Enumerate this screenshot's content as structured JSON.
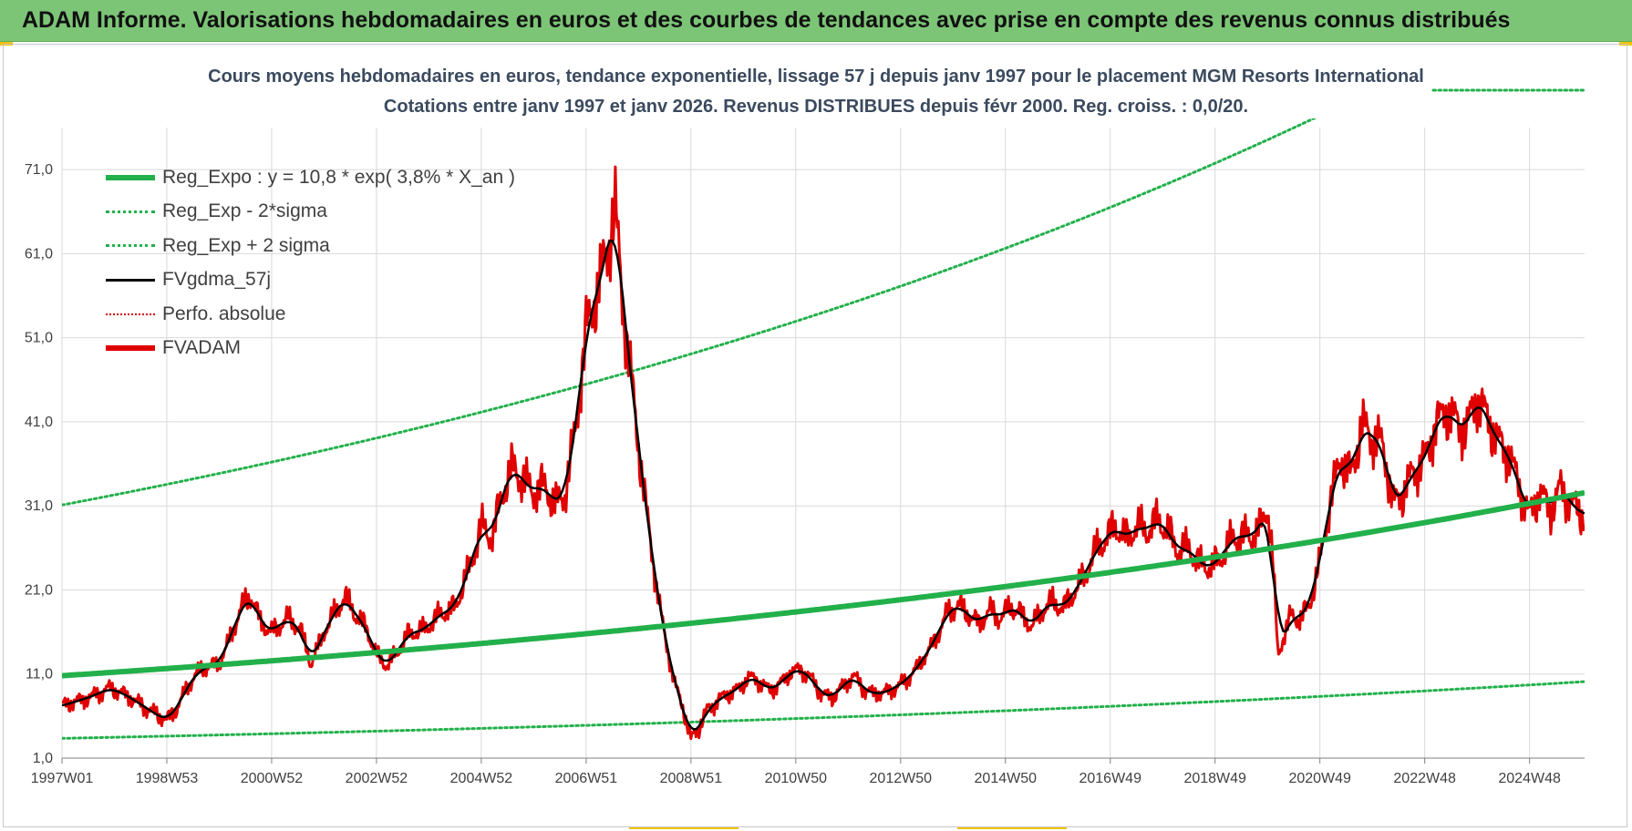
{
  "header": {
    "banner_title": "ADAM Informe. Valorisations hebdomadaires en euros et des courbes de tendances avec prise en compte des revenus connus distribués"
  },
  "chart_data": {
    "type": "line",
    "title": "Cours moyens hebdomadaires en euros, tendance exponentielle, lissage 57 j depuis janv 1997  pour le placement MGM Resorts International",
    "subtitle": "Cotations entre janv 1997 et janv 2026. Revenus DISTRIBUES depuis févr 2000. Reg. croiss. : 0,0/20.",
    "xlabel": "",
    "ylabel": "",
    "x_start_year": 1997.0,
    "x_end_year": 2026.05,
    "ylim": [
      1,
      76
    ],
    "y_ticks": [
      "1,0",
      "11,0",
      "21,0",
      "31,0",
      "41,0",
      "51,0",
      "61,0",
      "71,0"
    ],
    "y_tick_values": [
      1,
      11,
      21,
      31,
      41,
      51,
      61,
      71
    ],
    "x_ticks": [
      "1997W01",
      "1998W53",
      "2000W52",
      "2002W52",
      "2004W52",
      "2006W51",
      "2008W51",
      "2010W50",
      "2012W50",
      "2014W50",
      "2016W49",
      "2018W49",
      "2020W49",
      "2022W48",
      "2024W48"
    ],
    "x_tick_years": [
      1997.0,
      1999.0,
      2001.0,
      2003.0,
      2005.0,
      2007.0,
      2009.0,
      2011.0,
      2013.0,
      2015.0,
      2017.0,
      2019.0,
      2021.0,
      2023.0,
      2025.0
    ],
    "grid": true,
    "legend_position": "top-left",
    "regression": {
      "a": 10.8,
      "growth": 0.038
    },
    "series": [
      {
        "name": "Reg_Expo : y = 10,8 * exp( 3,8% *  X_an )",
        "color": "#22b04b",
        "style": "solid-thick",
        "kind": "reg"
      },
      {
        "name": "Reg_Exp - 2*sigma",
        "color": "#22b04b",
        "style": "dotted",
        "kind": "reg_low",
        "factor": 0.31
      },
      {
        "name": "Reg_Exp + 2 sigma",
        "color": "#22b04b",
        "style": "dotted",
        "kind": "reg_high",
        "factor": 2.88
      },
      {
        "name": "FVgdma_57j",
        "color": "#000000",
        "style": "solid",
        "kind": "smooth"
      },
      {
        "name": "Perfo. absolue",
        "color": "#d00000",
        "style": "dotted-thin",
        "kind": "none"
      },
      {
        "name": "FVADAM",
        "color": "#e00000",
        "style": "solid-thick",
        "kind": "price",
        "points": [
          [
            1997.0,
            7.2
          ],
          [
            1997.3,
            7.8
          ],
          [
            1997.6,
            8.4
          ],
          [
            1997.9,
            9.3
          ],
          [
            1998.2,
            8.6
          ],
          [
            1998.5,
            7.4
          ],
          [
            1998.8,
            6.2
          ],
          [
            1999.0,
            5.5
          ],
          [
            1999.2,
            7.0
          ],
          [
            1999.4,
            9.6
          ],
          [
            1999.6,
            11.3
          ],
          [
            1999.8,
            11.9
          ],
          [
            2000.0,
            12.2
          ],
          [
            2000.2,
            15.2
          ],
          [
            2000.4,
            18.6
          ],
          [
            2000.6,
            20.4
          ],
          [
            2000.8,
            17.0
          ],
          [
            2001.0,
            16.0
          ],
          [
            2001.3,
            17.6
          ],
          [
            2001.55,
            16.4
          ],
          [
            2001.75,
            12.2
          ],
          [
            2002.0,
            16.0
          ],
          [
            2002.2,
            18.2
          ],
          [
            2002.4,
            20.2
          ],
          [
            2002.6,
            18.0
          ],
          [
            2002.8,
            16.6
          ],
          [
            2003.0,
            13.2
          ],
          [
            2003.2,
            12.0
          ],
          [
            2003.4,
            13.6
          ],
          [
            2003.6,
            15.8
          ],
          [
            2003.9,
            16.2
          ],
          [
            2004.2,
            18.0
          ],
          [
            2004.5,
            19.0
          ],
          [
            2004.8,
            24.0
          ],
          [
            2005.0,
            28.6
          ],
          [
            2005.2,
            27.2
          ],
          [
            2005.4,
            32.4
          ],
          [
            2005.6,
            35.6
          ],
          [
            2005.8,
            34.0
          ],
          [
            2006.0,
            32.6
          ],
          [
            2006.2,
            33.6
          ],
          [
            2006.4,
            31.0
          ],
          [
            2006.6,
            32.6
          ],
          [
            2006.8,
            40.0
          ],
          [
            2007.0,
            52.0
          ],
          [
            2007.2,
            56.0
          ],
          [
            2007.4,
            61.5
          ],
          [
            2007.55,
            66.5
          ],
          [
            2007.7,
            55.0
          ],
          [
            2007.85,
            47.0
          ],
          [
            2008.0,
            38.0
          ],
          [
            2008.2,
            28.0
          ],
          [
            2008.35,
            21.0
          ],
          [
            2008.5,
            15.5
          ],
          [
            2008.7,
            9.6
          ],
          [
            2008.85,
            7.0
          ],
          [
            2009.0,
            3.2
          ],
          [
            2009.15,
            4.6
          ],
          [
            2009.3,
            6.6
          ],
          [
            2009.5,
            7.8
          ],
          [
            2009.7,
            8.6
          ],
          [
            2009.9,
            9.2
          ],
          [
            2010.1,
            10.6
          ],
          [
            2010.3,
            10.2
          ],
          [
            2010.5,
            9.0
          ],
          [
            2010.7,
            9.8
          ],
          [
            2010.9,
            11.2
          ],
          [
            2011.1,
            11.6
          ],
          [
            2011.3,
            10.4
          ],
          [
            2011.5,
            8.6
          ],
          [
            2011.7,
            8.2
          ],
          [
            2011.9,
            9.6
          ],
          [
            2012.1,
            10.8
          ],
          [
            2012.3,
            9.2
          ],
          [
            2012.5,
            8.6
          ],
          [
            2012.7,
            8.8
          ],
          [
            2012.9,
            9.4
          ],
          [
            2013.1,
            10.2
          ],
          [
            2013.3,
            11.6
          ],
          [
            2013.5,
            13.4
          ],
          [
            2013.7,
            15.6
          ],
          [
            2013.9,
            18.4
          ],
          [
            2014.1,
            19.2
          ],
          [
            2014.3,
            18.0
          ],
          [
            2014.5,
            17.0
          ],
          [
            2014.7,
            18.6
          ],
          [
            2014.9,
            17.6
          ],
          [
            2015.1,
            19.0
          ],
          [
            2015.3,
            18.2
          ],
          [
            2015.5,
            16.6
          ],
          [
            2015.7,
            18.6
          ],
          [
            2015.9,
            19.6
          ],
          [
            2016.1,
            18.8
          ],
          [
            2016.3,
            20.6
          ],
          [
            2016.5,
            22.6
          ],
          [
            2016.7,
            25.4
          ],
          [
            2016.9,
            27.0
          ],
          [
            2017.1,
            28.6
          ],
          [
            2017.3,
            27.0
          ],
          [
            2017.5,
            28.6
          ],
          [
            2017.7,
            28.0
          ],
          [
            2017.9,
            29.4
          ],
          [
            2018.1,
            28.0
          ],
          [
            2018.3,
            25.6
          ],
          [
            2018.5,
            26.0
          ],
          [
            2018.7,
            24.2
          ],
          [
            2018.9,
            23.6
          ],
          [
            2019.1,
            24.8
          ],
          [
            2019.3,
            26.8
          ],
          [
            2019.5,
            27.6
          ],
          [
            2019.7,
            27.2
          ],
          [
            2019.9,
            29.0
          ],
          [
            2020.0,
            31.0
          ],
          [
            2020.1,
            25.0
          ],
          [
            2020.2,
            13.0
          ],
          [
            2020.3,
            15.4
          ],
          [
            2020.45,
            18.0
          ],
          [
            2020.6,
            17.4
          ],
          [
            2020.8,
            19.2
          ],
          [
            2021.0,
            24.4
          ],
          [
            2021.2,
            31.6
          ],
          [
            2021.4,
            36.8
          ],
          [
            2021.6,
            34.6
          ],
          [
            2021.8,
            40.6
          ],
          [
            2022.0,
            39.2
          ],
          [
            2022.2,
            38.2
          ],
          [
            2022.4,
            31.4
          ],
          [
            2022.6,
            32.4
          ],
          [
            2022.8,
            35.4
          ],
          [
            2023.0,
            36.2
          ],
          [
            2023.2,
            40.6
          ],
          [
            2023.4,
            42.2
          ],
          [
            2023.6,
            41.0
          ],
          [
            2023.8,
            40.0
          ],
          [
            2024.0,
            44.2
          ],
          [
            2024.2,
            41.2
          ],
          [
            2024.4,
            38.6
          ],
          [
            2024.6,
            37.2
          ],
          [
            2024.8,
            33.4
          ],
          [
            2025.0,
            29.8
          ],
          [
            2025.2,
            32.6
          ],
          [
            2025.4,
            30.4
          ],
          [
            2025.6,
            33.2
          ],
          [
            2025.8,
            31.2
          ],
          [
            2026.0,
            30.0
          ]
        ]
      }
    ]
  }
}
